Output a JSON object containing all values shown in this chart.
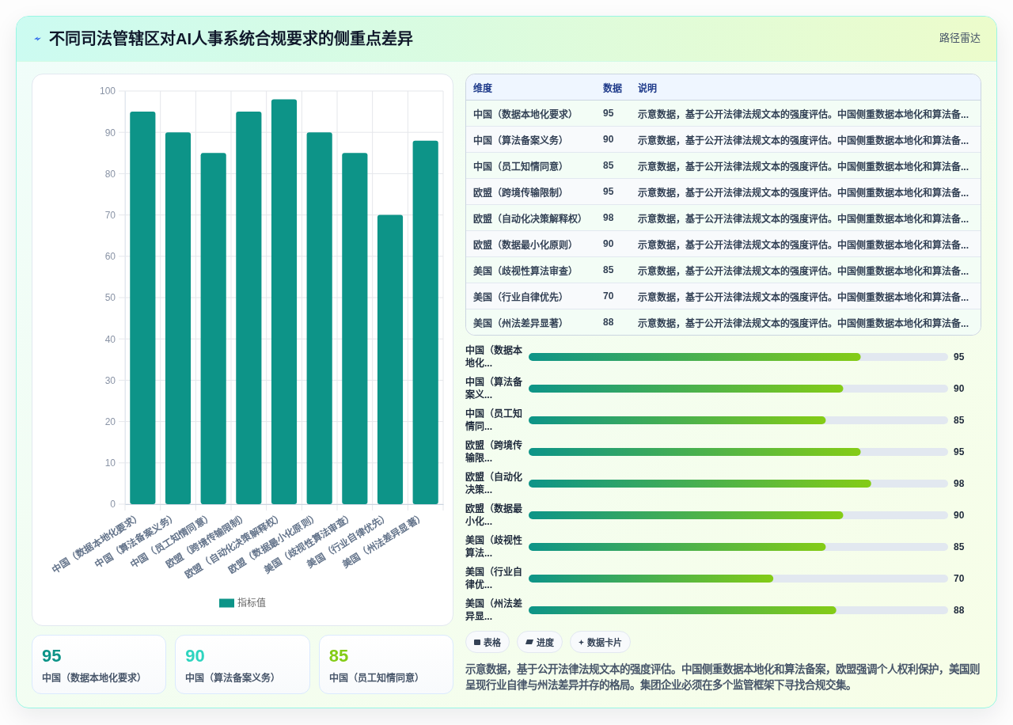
{
  "chart_data": [
    {
      "type": "bar",
      "title": "不同司法管辖区对AI人事系统合规要求的侧重点差异",
      "categories": [
        "中国（数据本地化要求）",
        "中国（算法备案义务）",
        "中国（员工知情同意）",
        "欧盟（跨境传输限制）",
        "欧盟（自动化决策解释权）",
        "欧盟（数据最小化原则）",
        "美国（歧视性算法审查）",
        "美国（行业自律优先）",
        "美国（州法差异显著）"
      ],
      "series": [
        {
          "name": "指标值",
          "color": "#0d9488",
          "values": [
            95,
            90,
            85,
            95,
            98,
            90,
            85,
            70,
            88
          ]
        }
      ],
      "ylim": [
        0,
        100
      ],
      "yticks": [
        0,
        10,
        20,
        30,
        40,
        50,
        60,
        70,
        80,
        90,
        100
      ],
      "grid": true,
      "legend": "bottom"
    },
    {
      "type": "other",
      "title": "路径雷达",
      "categories": [
        "中国（数据本地化要求）",
        "中国（算法备案义务）",
        "中国（员工知情同意）",
        "欧盟（跨境传输限制）",
        "欧盟（自动化决策解释权）",
        "欧盟（数据最小化原则）",
        "美国（歧视性算法审查）",
        "美国（行业自律优先）",
        "美国（州法差异显著）"
      ],
      "values": [
        95,
        90,
        85,
        95,
        98,
        90,
        85,
        70,
        88
      ],
      "data_labels": true,
      "annotations": [
        "维度",
        "数据",
        "说明",
        "示意数据，基于公开法律法规文本的强度评估。中国侧重数据本地化和算法备...",
        "示意数据，基于公开法律法规文本的强度评估。中国侧重数据本地化和算法备...",
        "示意数据，基于公开法律法规文本的强度评估。中国侧重数据本地化和算法备...",
        "示意数据，基于公开法律法规文本的强度评估。中国侧重数据本地化和算法备...",
        "示意数据，基于公开法律法规文本的强度评估。中国侧重数据本地化和算法备...",
        "示意数据，基于公开法律法规文本的强度评估。中国侧重数据本地化和算法备...",
        "示意数据，基于公开法律法规文本的强度评估。中国侧重数据本地化和算法备...",
        "示意数据，基于公开法律法规文本的强度评估。中国侧重数据本地化和算法备...",
        "示意数据，基于公开法律法规文本的强度评估。中国侧重数据本地化和算法备..."
      ]
    },
    {
      "type": "bar",
      "orientation": "horizontal",
      "categories": [
        "中国（数据本地化...",
        "中国（算法备案义...",
        "中国（员工知情同...",
        "欧盟（跨境传输限...",
        "欧盟（自动化决策...",
        "欧盟（数据最小化...",
        "美国（歧视性算法...",
        "美国（行业自律优...",
        "美国（州法差异显..."
      ],
      "series": [
        {
          "color": "#0d9488",
          "values": [
            95,
            90,
            85,
            95,
            98,
            90,
            85,
            70,
            88
          ]
        }
      ],
      "xlim": [
        0,
        120
      ],
      "data_labels": true
    },
    {
      "type": "other",
      "categories": [
        "中国（数据本地化要求）",
        "中国（算法备案义务）",
        "中国（员工知情同意）"
      ],
      "values": [
        95,
        90,
        85
      ],
      "colors": [
        "#0d9488",
        "#2dd4bf",
        "#84cc16"
      ],
      "data_labels": true
    },
    {
      "type": "other",
      "categories": [
        "表格",
        "进度",
        "数据卡片"
      ],
      "annotations": [
        "示意数据，基于公开法律法规文本的强度评估。中国侧重数据本地化和算法备案，欧盟强调个人权利保护，美国则呈现行业自律与州法差异并存的格局。集团企业必须在多个监管框架下寻找合规交集。"
      ]
    }
  ]
}
